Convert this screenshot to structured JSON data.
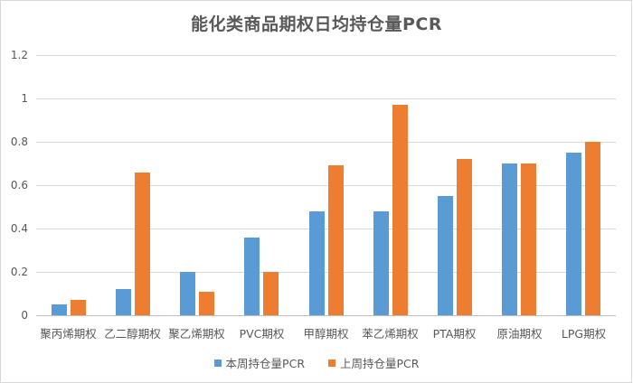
{
  "chart_data": {
    "type": "bar",
    "title": "能化类商品期权日均持仓量PCR",
    "xlabel": "",
    "ylabel": "",
    "ylim": [
      0,
      1.2
    ],
    "yticks": [
      "0",
      "0.2",
      "0.4",
      "0.6",
      "0.8",
      "1",
      "1.2"
    ],
    "grid": true,
    "legend_position": "bottom",
    "categories": [
      "聚丙烯期权",
      "乙二醇期权",
      "聚乙烯期权",
      "PVC期权",
      "甲醇期权",
      "苯乙烯期权",
      "PTA期权",
      "原油期权",
      "LPG期权"
    ],
    "series": [
      {
        "name": "本周持仓量PCR",
        "color": "#5b9bd5",
        "values": [
          0.05,
          0.12,
          0.2,
          0.36,
          0.48,
          0.48,
          0.55,
          0.7,
          0.75
        ]
      },
      {
        "name": "上周持仓量PCR",
        "color": "#ed7d31",
        "values": [
          0.07,
          0.66,
          0.11,
          0.2,
          0.69,
          0.97,
          0.72,
          0.7,
          0.8
        ]
      }
    ]
  },
  "legend": {
    "items": [
      {
        "label": "本周持仓量PCR",
        "color": "#5b9bd5"
      },
      {
        "label": "上周持仓量PCR",
        "color": "#ed7d31"
      }
    ]
  }
}
